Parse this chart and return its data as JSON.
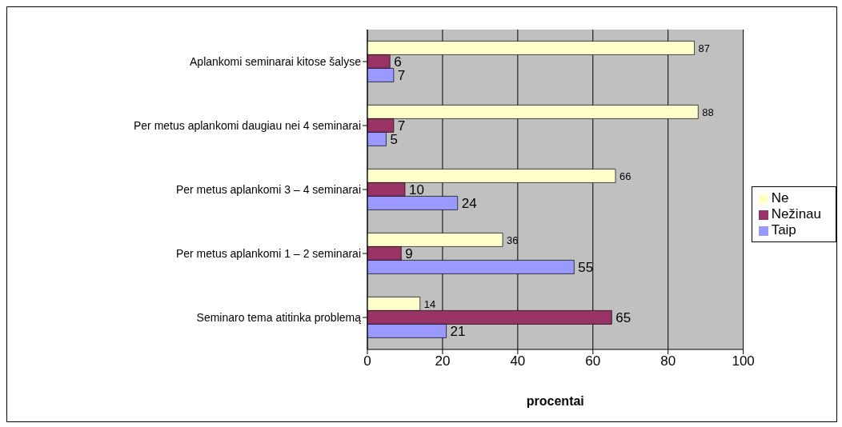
{
  "chart_data": {
    "type": "bar",
    "orientation": "horizontal",
    "categories": [
      "Aplankomi seminarai kitose šalyse",
      "Per metus aplankomi daugiau nei 4 seminarai",
      "Per metus aplankomi 3 – 4 seminarai",
      "Per metus aplankomi 1 – 2 seminarai",
      "Seminaro tema atitinka problemą"
    ],
    "series": [
      {
        "name": "Ne",
        "color": "#ffffcc",
        "values": [
          87,
          88,
          66,
          36,
          14
        ]
      },
      {
        "name": "Nežinau",
        "color": "#993366",
        "values": [
          6,
          7,
          10,
          9,
          65
        ]
      },
      {
        "name": "Taip",
        "color": "#9999ff",
        "values": [
          7,
          5,
          24,
          55,
          21
        ]
      }
    ],
    "xlim": [
      0,
      100
    ],
    "xticks": [
      0,
      20,
      40,
      60,
      80,
      100
    ],
    "xlabel": "procentai",
    "grid": "x",
    "legend": "right",
    "data_labels": true
  }
}
